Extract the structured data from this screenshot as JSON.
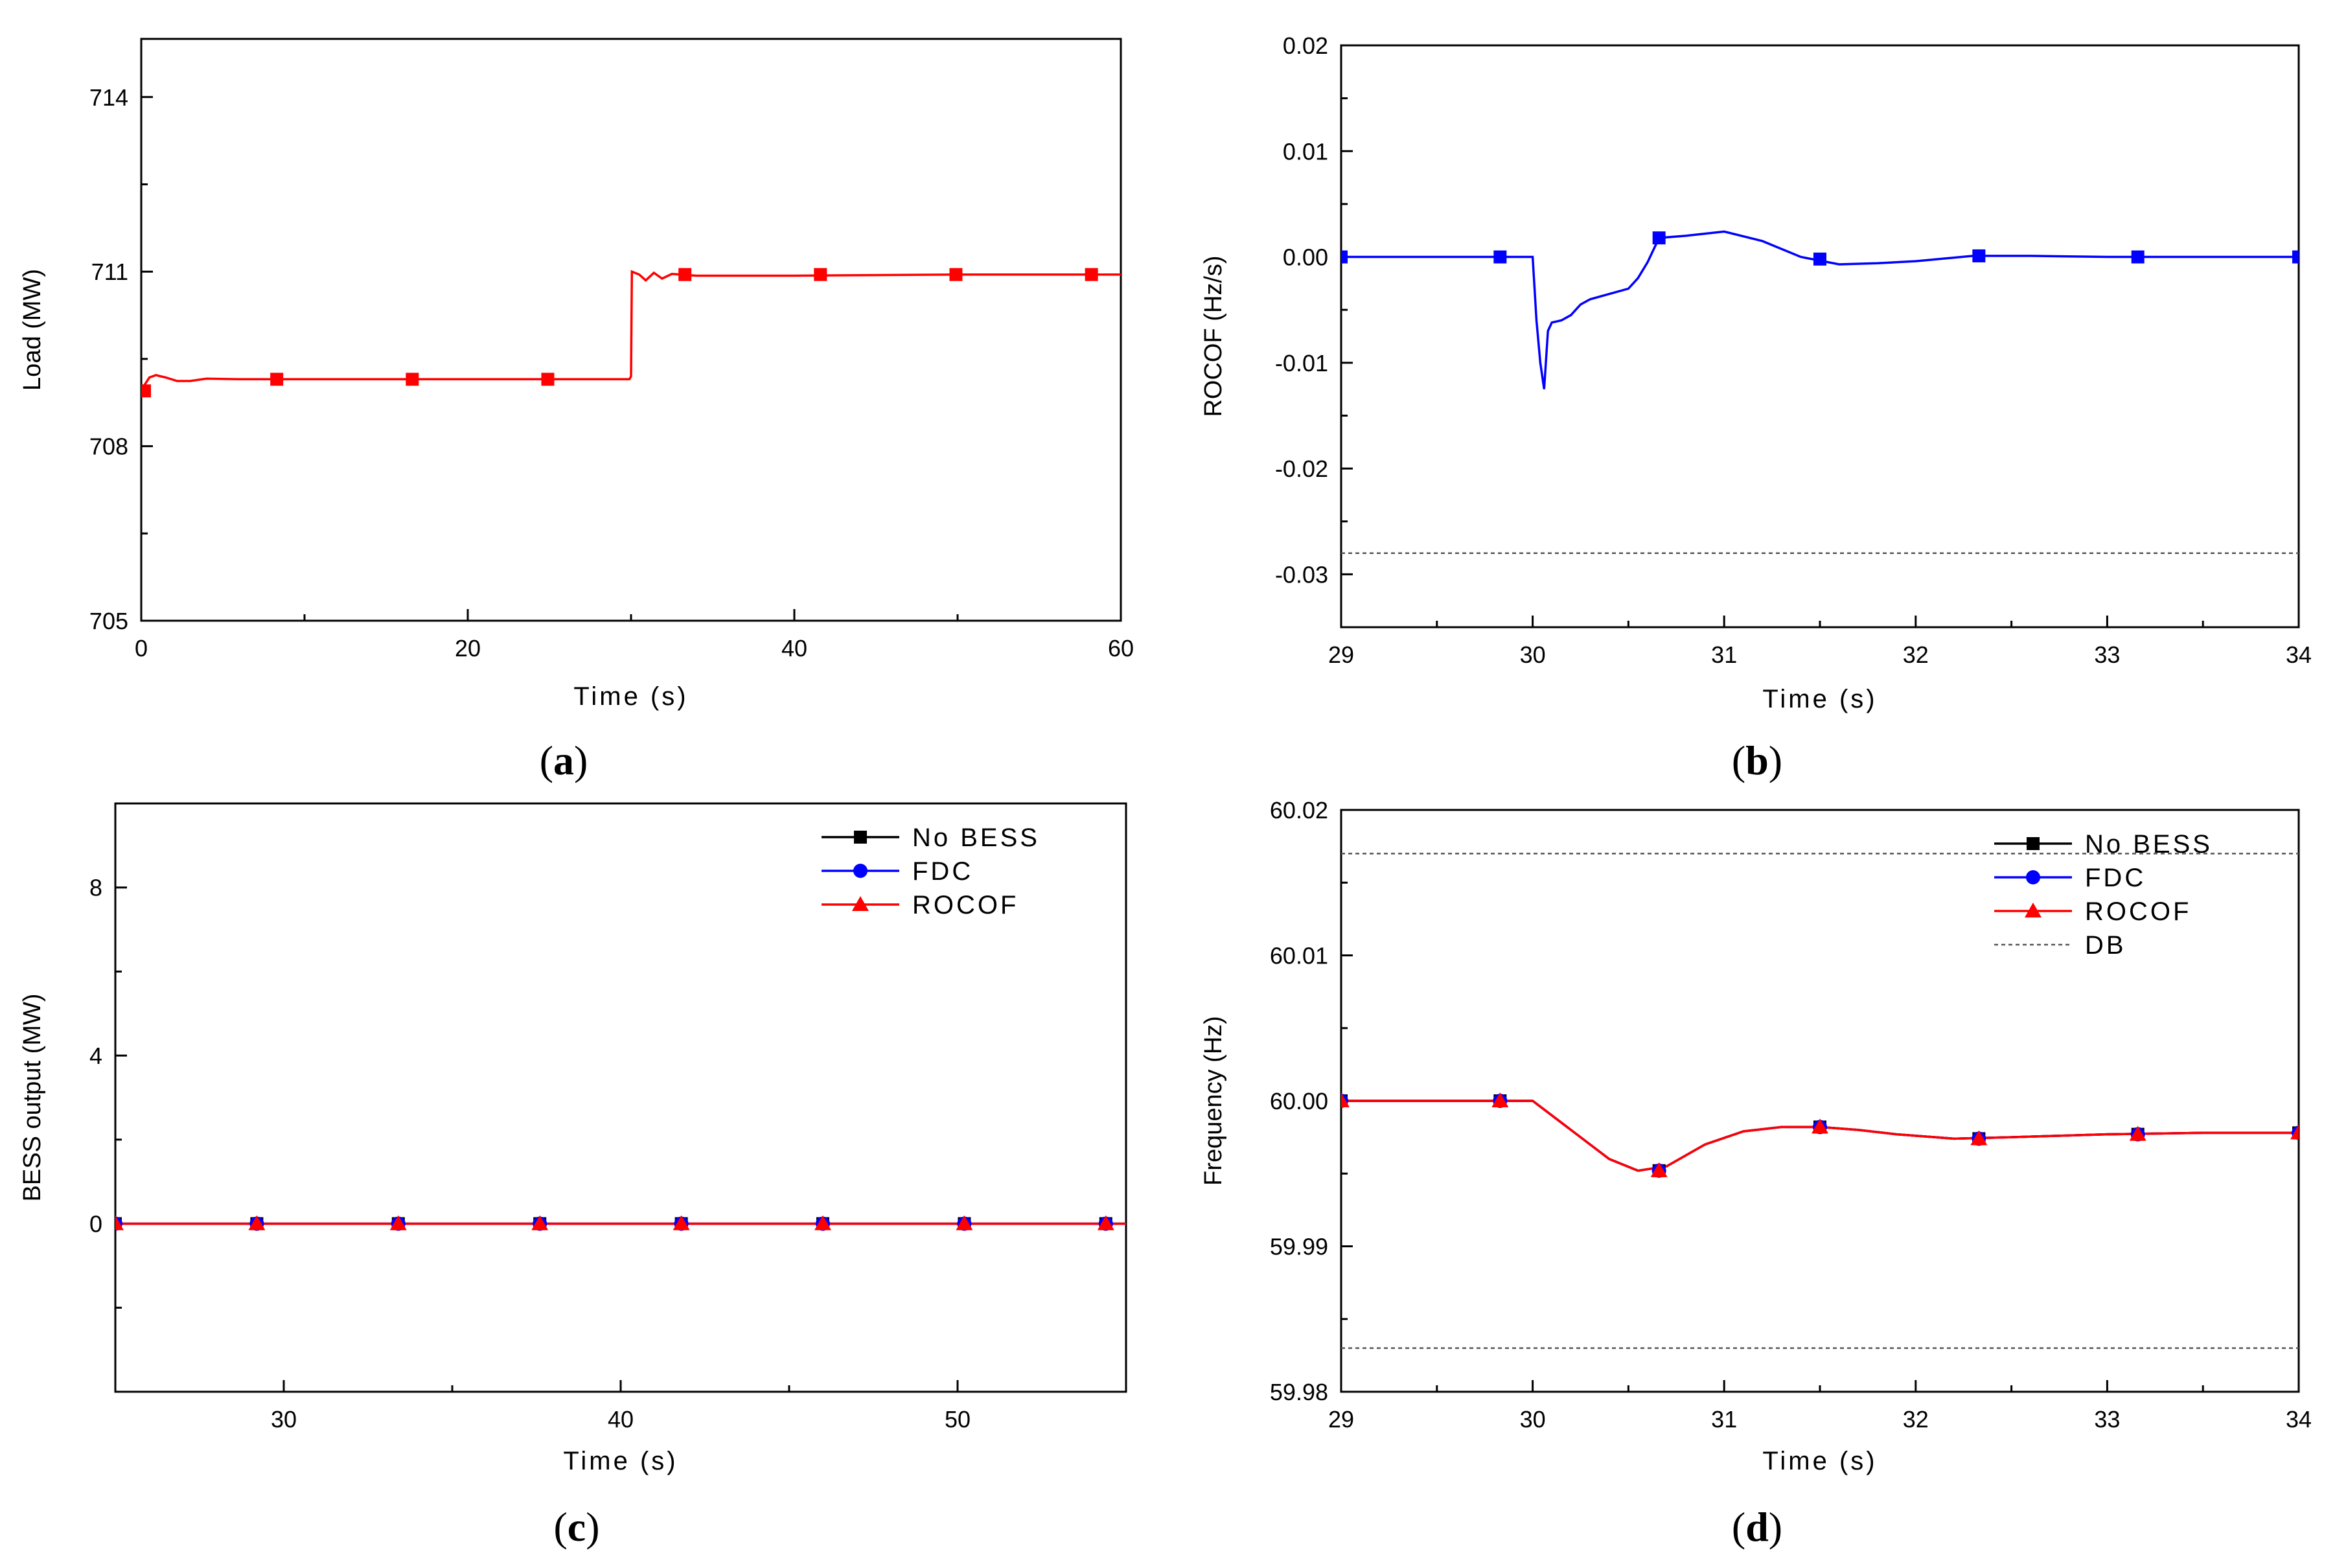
{
  "colors": {
    "red": "#ff0000",
    "blue": "#0000ff",
    "black": "#000000",
    "gray": "#555555"
  },
  "chart_data": [
    {
      "id": "a",
      "type": "line",
      "panel_label": "a",
      "xlabel": "Time (s)",
      "ylabel": "Load (MW)",
      "xlim": [
        0,
        60
      ],
      "ylim": [
        705,
        715
      ],
      "xticks": [
        0,
        20,
        40,
        60
      ],
      "xtick_labels": [
        "0",
        "20",
        "40",
        "60"
      ],
      "yticks": [
        705,
        708,
        711,
        714
      ],
      "ytick_labels": [
        "705",
        "708",
        "711",
        "714"
      ],
      "series": [
        {
          "name": "Load",
          "color": "#ff0000",
          "marker": "square",
          "x": [
            0.0,
            0.2,
            0.5,
            0.9,
            1.5,
            2.2,
            3.0,
            4.0,
            6.0,
            10.0,
            20.0,
            29.9,
            30.0,
            30.05,
            30.5,
            30.9,
            31.4,
            31.9,
            32.5,
            34.0,
            40.0,
            50.0,
            60.0
          ],
          "y": [
            708.9,
            709.05,
            709.18,
            709.22,
            709.18,
            709.12,
            709.12,
            709.16,
            709.15,
            709.15,
            709.15,
            709.15,
            709.2,
            711.0,
            710.95,
            710.85,
            710.98,
            710.88,
            710.96,
            710.93,
            710.93,
            710.95,
            710.95
          ],
          "markers_x": [
            0.2,
            8.3,
            16.6,
            24.9,
            33.3,
            41.6,
            49.9,
            58.2
          ],
          "markers_y": [
            708.95,
            709.15,
            709.15,
            709.15,
            710.95,
            710.95,
            710.95,
            710.95
          ]
        }
      ]
    },
    {
      "id": "b",
      "type": "line",
      "panel_label": "b",
      "xlabel": "Time (s)",
      "ylabel": "ROCOF (Hz/s)",
      "xlim": [
        29,
        34
      ],
      "ylim": [
        -0.035,
        0.02
      ],
      "xticks": [
        29,
        30,
        31,
        32,
        33,
        34
      ],
      "xtick_labels": [
        "29",
        "30",
        "31",
        "32",
        "33",
        "34"
      ],
      "yticks": [
        -0.03,
        -0.02,
        -0.01,
        0.0,
        0.01,
        0.02
      ],
      "ytick_labels": [
        "-0.03",
        "-0.02",
        "-0.01",
        "0.00",
        "0.01",
        "0.02"
      ],
      "reference_line_y": -0.028,
      "series": [
        {
          "name": "ROCOF",
          "color": "#0000ff",
          "marker": "square",
          "x": [
            29.0,
            30.0,
            30.02,
            30.04,
            30.06,
            30.08,
            30.1,
            30.15,
            30.2,
            30.25,
            30.3,
            30.4,
            30.5,
            30.55,
            30.6,
            30.66,
            30.8,
            31.0,
            31.2,
            31.4,
            31.6,
            31.8,
            32.0,
            32.3,
            32.6,
            33.0,
            33.5,
            34.0
          ],
          "y": [
            0.0,
            0.0,
            -0.006,
            -0.01,
            -0.0125,
            -0.007,
            -0.0062,
            -0.006,
            -0.0055,
            -0.0045,
            -0.004,
            -0.0035,
            -0.003,
            -0.002,
            -0.0005,
            0.0018,
            0.002,
            0.0024,
            0.0015,
            0.0,
            -0.0007,
            -0.0006,
            -0.0004,
            0.0001,
            0.0001,
            0.0,
            0.0,
            0.0
          ],
          "markers_x": [
            29.0,
            29.83,
            30.66,
            31.5,
            32.33,
            33.16,
            34.0
          ],
          "markers_y": [
            0.0,
            0.0,
            0.0018,
            -0.0002,
            0.0001,
            0.0,
            0.0
          ]
        }
      ]
    },
    {
      "id": "c",
      "type": "line",
      "panel_label": "c",
      "xlabel": "Time (s)",
      "ylabel": "BESS output (MW)",
      "xlim": [
        25,
        55
      ],
      "ylim": [
        -4,
        10
      ],
      "xticks": [
        30,
        40,
        50
      ],
      "xtick_labels": [
        "30",
        "40",
        "50"
      ],
      "yticks": [
        0,
        4,
        8
      ],
      "ytick_labels": [
        "0",
        "4",
        "8"
      ],
      "legend_position": "top-right",
      "series": [
        {
          "name": "No BESS",
          "color": "#000000",
          "marker": "square",
          "x": [
            25,
            55
          ],
          "y": [
            0,
            0
          ],
          "markers_x": [
            25.0,
            29.2,
            33.4,
            37.6,
            41.8,
            46.0,
            50.2,
            54.4
          ],
          "markers_y": [
            0,
            0,
            0,
            0,
            0,
            0,
            0,
            0
          ]
        },
        {
          "name": "FDC",
          "color": "#0000ff",
          "marker": "circle",
          "x": [
            25,
            55
          ],
          "y": [
            0,
            0
          ],
          "markers_x": [
            25.0,
            29.2,
            33.4,
            37.6,
            41.8,
            46.0,
            50.2,
            54.4
          ],
          "markers_y": [
            0,
            0,
            0,
            0,
            0,
            0,
            0,
            0
          ]
        },
        {
          "name": "ROCOF",
          "color": "#ff0000",
          "marker": "triangle",
          "x": [
            25,
            55
          ],
          "y": [
            0,
            0
          ],
          "markers_x": [
            25.0,
            29.2,
            33.4,
            37.6,
            41.8,
            46.0,
            50.2,
            54.4
          ],
          "markers_y": [
            0,
            0,
            0,
            0,
            0,
            0,
            0,
            0
          ]
        }
      ]
    },
    {
      "id": "d",
      "type": "line",
      "panel_label": "d",
      "xlabel": "Time (s)",
      "ylabel": "Frequency (Hz)",
      "xlim": [
        29,
        34
      ],
      "ylim": [
        59.98,
        60.02
      ],
      "xticks": [
        29,
        30,
        31,
        32,
        33,
        34
      ],
      "xtick_labels": [
        "29",
        "30",
        "31",
        "32",
        "33",
        "34"
      ],
      "yticks": [
        59.98,
        59.99,
        60.0,
        60.01,
        60.02
      ],
      "ytick_labels": [
        "59.98",
        "59.99",
        "60.00",
        "60.01",
        "60.02"
      ],
      "reference_lines_y": [
        60.017,
        59.983
      ],
      "legend_position": "top-right",
      "series": [
        {
          "name": "No BESS",
          "color": "#000000",
          "marker": "square",
          "x": [
            29.0,
            30.0,
            30.05,
            30.2,
            30.4,
            30.55,
            30.7,
            30.9,
            31.1,
            31.3,
            31.5,
            31.7,
            31.9,
            32.2,
            32.5,
            33.0,
            33.5,
            34.0
          ],
          "y": [
            60.0,
            60.0,
            59.9995,
            59.998,
            59.996,
            59.9952,
            59.9955,
            59.997,
            59.9979,
            59.9982,
            59.9982,
            59.998,
            59.9977,
            59.9974,
            59.9975,
            59.9977,
            59.9978,
            59.9978
          ],
          "markers_x": [
            29.0,
            29.83,
            30.66,
            31.5,
            32.33,
            33.16,
            34.0
          ],
          "markers_y": [
            60.0,
            60.0,
            59.9952,
            59.9982,
            59.9974,
            59.9977,
            59.9978
          ]
        },
        {
          "name": "FDC",
          "color": "#0000ff",
          "marker": "circle",
          "x": [
            29.0,
            30.0,
            30.05,
            30.2,
            30.4,
            30.55,
            30.7,
            30.9,
            31.1,
            31.3,
            31.5,
            31.7,
            31.9,
            32.2,
            32.5,
            33.0,
            33.5,
            34.0
          ],
          "y": [
            60.0,
            60.0,
            59.9995,
            59.998,
            59.996,
            59.9952,
            59.9955,
            59.997,
            59.9979,
            59.9982,
            59.9982,
            59.998,
            59.9977,
            59.9974,
            59.9975,
            59.9977,
            59.9978,
            59.9978
          ],
          "markers_x": [
            29.0,
            29.83,
            30.66,
            31.5,
            32.33,
            33.16,
            34.0
          ],
          "markers_y": [
            60.0,
            60.0,
            59.9952,
            59.9982,
            59.9974,
            59.9977,
            59.9978
          ]
        },
        {
          "name": "ROCOF",
          "color": "#ff0000",
          "marker": "triangle",
          "x": [
            29.0,
            30.0,
            30.05,
            30.2,
            30.4,
            30.55,
            30.7,
            30.9,
            31.1,
            31.3,
            31.5,
            31.7,
            31.9,
            32.2,
            32.5,
            33.0,
            33.5,
            34.0
          ],
          "y": [
            60.0,
            60.0,
            59.9995,
            59.998,
            59.996,
            59.9952,
            59.9955,
            59.997,
            59.9979,
            59.9982,
            59.9982,
            59.998,
            59.9977,
            59.9974,
            59.9975,
            59.9977,
            59.9978,
            59.9978
          ],
          "markers_x": [
            29.0,
            29.83,
            30.66,
            31.5,
            32.33,
            33.16,
            34.0
          ],
          "markers_y": [
            60.0,
            60.0,
            59.9952,
            59.9982,
            59.9974,
            59.9977,
            59.9978
          ]
        },
        {
          "name": "DB",
          "color": "#555555",
          "marker": "none",
          "dashed": true,
          "x": [],
          "y": []
        }
      ]
    }
  ]
}
